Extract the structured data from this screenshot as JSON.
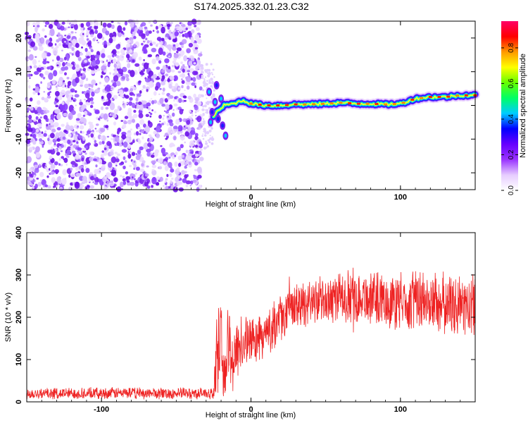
{
  "title": "S174.2025.332.01.23.C32",
  "chart_data": [
    {
      "type": "heatmap",
      "name": "spectrogram",
      "xlabel": "Height of straight line (km)",
      "ylabel": "Frequency (Hz)",
      "xlim": [
        -150,
        150
      ],
      "ylim": [
        -25,
        25
      ],
      "xticks": [
        -100,
        0,
        100
      ],
      "yticks": [
        -20,
        -10,
        0,
        10,
        20
      ],
      "noise_region_x": [
        -150,
        -33
      ],
      "signal_track": {
        "x": [
          -25,
          -18,
          -12,
          -5,
          0,
          10,
          20,
          30,
          40,
          50,
          60,
          70,
          80,
          90,
          100,
          110,
          120,
          130,
          140,
          150
        ],
        "y": [
          -3,
          0,
          0.5,
          1.5,
          0.5,
          0,
          0,
          0.3,
          0.3,
          0.5,
          0.8,
          0.5,
          0.5,
          0.3,
          0.5,
          2,
          2.5,
          2.5,
          3,
          3
        ]
      },
      "colorbar": {
        "label": "Normalized spectral amplitude",
        "range": [
          0,
          0.95
        ],
        "ticks": [
          0.0,
          0.2,
          0.4,
          0.6,
          0.8
        ],
        "colors": [
          "#ffffff",
          "#e6ccff",
          "#9933ff",
          "#6600ff",
          "#0000ff",
          "#00ccff",
          "#00ff66",
          "#66ff00",
          "#ffff00",
          "#ff9900",
          "#ff0000",
          "#ff0066"
        ]
      }
    },
    {
      "type": "line",
      "name": "snr",
      "xlabel": "Height of straight line (km)",
      "ylabel": "SNR (10 * v/v)",
      "xlim": [
        -150,
        150
      ],
      "ylim": [
        0,
        400
      ],
      "xticks": [
        -100,
        0,
        100
      ],
      "yticks": [
        0,
        100,
        200,
        300,
        400
      ],
      "color": "#ee2222",
      "x": [
        -150,
        -140,
        -130,
        -120,
        -110,
        -100,
        -90,
        -80,
        -70,
        -60,
        -50,
        -40,
        -30,
        -25,
        -22,
        -20,
        -18,
        -15,
        -12,
        -10,
        -5,
        0,
        5,
        10,
        15,
        20,
        30,
        40,
        50,
        60,
        70,
        80,
        90,
        100,
        110,
        120,
        130,
        140,
        150
      ],
      "y": [
        20,
        20,
        20,
        20,
        20,
        20,
        21,
        21,
        20,
        20,
        20,
        20,
        20,
        20,
        150,
        120,
        60,
        140,
        90,
        130,
        140,
        145,
        150,
        160,
        180,
        200,
        225,
        240,
        240,
        245,
        250,
        245,
        240,
        235,
        240,
        235,
        230,
        225,
        230
      ],
      "noise_amp": [
        15,
        15,
        15,
        15,
        15,
        15,
        15,
        15,
        15,
        15,
        15,
        15,
        15,
        15,
        130,
        120,
        80,
        100,
        90,
        90,
        70,
        60,
        60,
        60,
        60,
        60,
        60,
        60,
        60,
        70,
        70,
        70,
        70,
        75,
        80,
        80,
        80,
        80,
        80
      ]
    }
  ]
}
